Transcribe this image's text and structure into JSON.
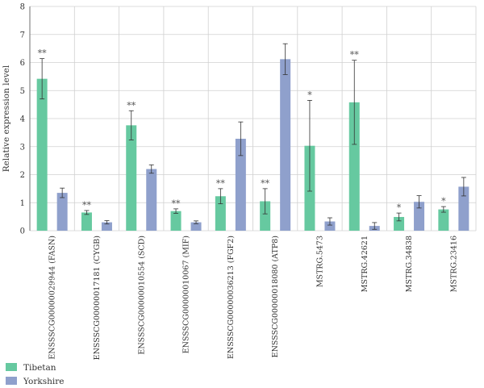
{
  "chart_data": {
    "type": "bar",
    "title": "",
    "xlabel": "",
    "ylabel": "Relative expression level",
    "ylim": [
      0,
      8
    ],
    "yticks": [
      0,
      1,
      2,
      3,
      4,
      5,
      6,
      7,
      8
    ],
    "grid": true,
    "legend_position": "bottom-left",
    "categories": [
      "ENSSSCG00000029944 (FASN)",
      "ENSSSCG00000017181 (CYGB)",
      "ENSSSCG00000010554 (SCD)",
      "ENSSSCG00000010067 (MIF)",
      "ENSSSCG00000036213 (FGF2)",
      "ENSSSCG00000018080 (ATP8)",
      "MSTRG.5473",
      "MSTRG.42621",
      "MSTRG.34838",
      "MSTRG.23416"
    ],
    "series": [
      {
        "name": "Tibetan",
        "color": "#66c9a0",
        "values": [
          5.42,
          0.65,
          3.76,
          0.7,
          1.23,
          1.05,
          3.03,
          4.58,
          0.49,
          0.76
        ],
        "errors": [
          0.72,
          0.07,
          0.52,
          0.08,
          0.27,
          0.45,
          1.62,
          1.5,
          0.14,
          0.1
        ],
        "significance": [
          "**",
          "**",
          "**",
          "**",
          "**",
          "**",
          "*",
          "**",
          "*",
          "*"
        ]
      },
      {
        "name": "Yorkshire",
        "color": "#8fa0cc",
        "values": [
          1.35,
          0.3,
          2.2,
          0.3,
          3.28,
          6.12,
          0.33,
          0.17,
          1.03,
          1.57
        ],
        "errors": [
          0.17,
          0.06,
          0.15,
          0.05,
          0.6,
          0.55,
          0.13,
          0.12,
          0.22,
          0.33
        ],
        "significance": [
          "",
          "",
          "",
          "",
          "",
          "",
          "",
          "",
          "",
          ""
        ]
      }
    ]
  }
}
